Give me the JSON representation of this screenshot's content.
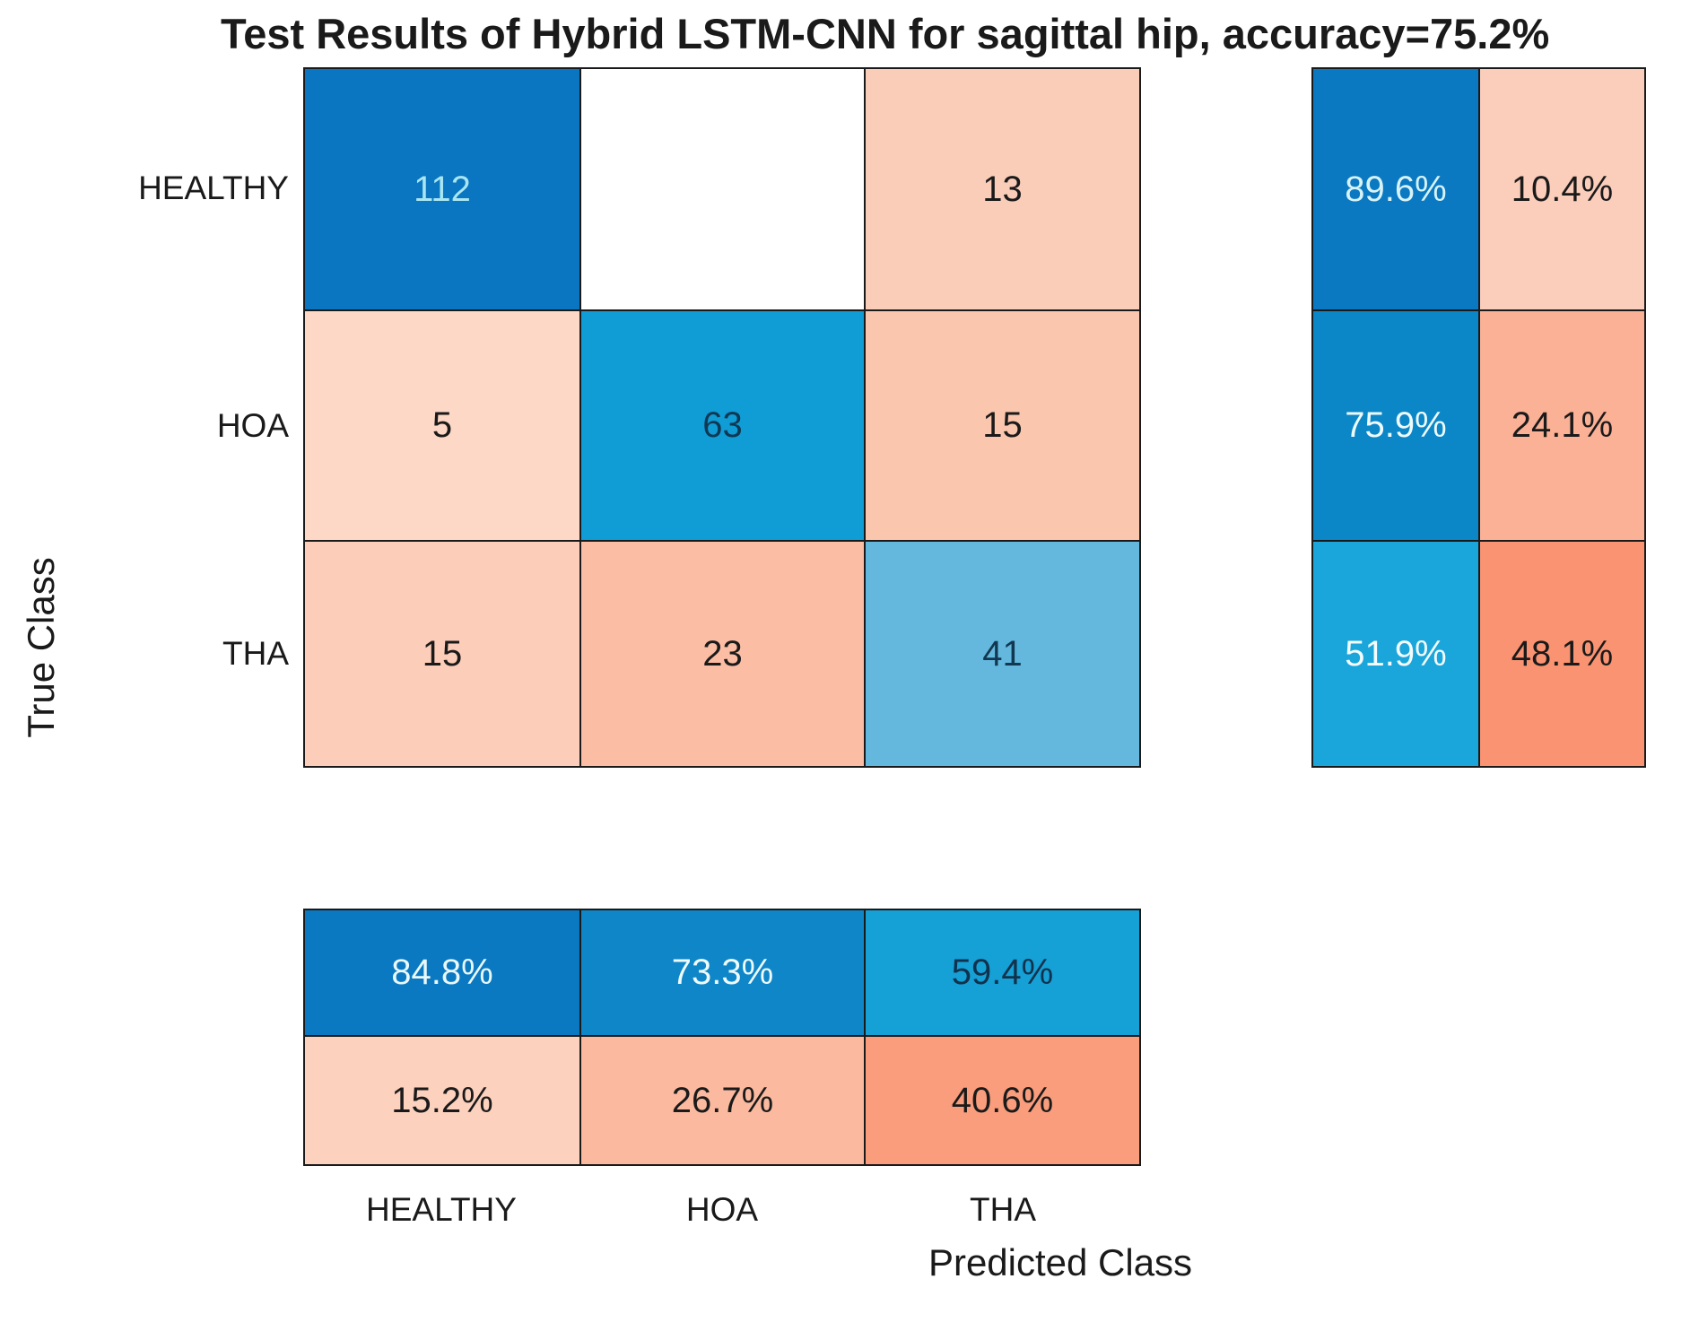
{
  "title": {
    "text": "Test Results of Hybrid LSTM-CNN for sagittal hip, accuracy=75.2",
    "clipped_suffix": "%"
  },
  "axes": {
    "x_label": "Predicted Class",
    "y_label": "True Class",
    "x_ticks": [
      "HEALTHY",
      "HOA",
      "THA"
    ],
    "y_ticks": [
      "HEALTHY",
      "HOA",
      "THA"
    ]
  },
  "colors": {
    "grid_line": "#1a1a1a",
    "background": "#ffffff",
    "diagonal_blue_max": "#0a75c0",
    "off_diagonal_salmon_max": "#f99372"
  },
  "matrix_cells": [
    {
      "v": "112",
      "bg": "#0a75c0",
      "fg": "#a9e6f1"
    },
    {
      "v": "",
      "bg": "#ffffff",
      "fg": "#1a1a1a"
    },
    {
      "v": "13",
      "bg": "#facdb9",
      "fg": "#1a1a1a"
    },
    {
      "v": "5",
      "bg": "#fdd8c6",
      "fg": "#1a1a1a"
    },
    {
      "v": "63",
      "bg": "#109cd4",
      "fg": "#0f3854"
    },
    {
      "v": "15",
      "bg": "#fbc6ae",
      "fg": "#1a1a1a"
    },
    {
      "v": "15",
      "bg": "#fccdb8",
      "fg": "#1a1a1a"
    },
    {
      "v": "23",
      "bg": "#fbbda4",
      "fg": "#1a1a1a"
    },
    {
      "v": "41",
      "bg": "#64b8dd",
      "fg": "#123751"
    }
  ],
  "row_summary_cells": [
    {
      "v": "89.6%",
      "bg": "#0a79c2",
      "fg": "#d8f3f6"
    },
    {
      "v": "10.4%",
      "bg": "#fbcdbb",
      "fg": "#1a1a1a"
    },
    {
      "v": "75.9%",
      "bg": "#0b86c7",
      "fg": "#eefafb"
    },
    {
      "v": "24.1%",
      "bg": "#fab195",
      "fg": "#1a1a1a"
    },
    {
      "v": "51.9%",
      "bg": "#1ba6db",
      "fg": "#f3fbfd"
    },
    {
      "v": "48.1%",
      "bg": "#f99372",
      "fg": "#1a1a1a"
    }
  ],
  "col_summary_cells": [
    {
      "v": "84.8%",
      "bg": "#0b79c1",
      "fg": "#e9f8fa"
    },
    {
      "v": "73.3%",
      "bg": "#0e86c8",
      "fg": "#eefafb"
    },
    {
      "v": "59.4%",
      "bg": "#15a0d6",
      "fg": "#11324c"
    },
    {
      "v": "15.2%",
      "bg": "#fcd1be",
      "fg": "#1a1a1a"
    },
    {
      "v": "26.7%",
      "bg": "#fbbaa0",
      "fg": "#1a1a1a"
    },
    {
      "v": "40.6%",
      "bg": "#f99d7c",
      "fg": "#1a1a1a"
    }
  ],
  "chart_data": {
    "type": "heatmap",
    "subtype": "confusion-matrix",
    "title": "Test Results of Hybrid LSTM-CNN for sagittal hip, accuracy=75.2%",
    "xlabel": "Predicted Class",
    "ylabel": "True Class",
    "classes": [
      "HEALTHY",
      "HOA",
      "THA"
    ],
    "confusion_counts_rows_true_cols_predicted": [
      [
        112,
        0,
        13
      ],
      [
        5,
        63,
        15
      ],
      [
        15,
        23,
        41
      ]
    ],
    "row_summary_true_positive_rate_pct": [
      89.6,
      75.9,
      51.9
    ],
    "row_summary_false_negative_rate_pct": [
      10.4,
      24.1,
      48.1
    ],
    "col_summary_positive_predictive_value_pct": [
      84.8,
      73.3,
      59.4
    ],
    "col_summary_false_discovery_rate_pct": [
      15.2,
      26.7,
      40.6
    ],
    "accuracy_pct": 75.2,
    "legend_position": "none",
    "grid": true,
    "colormap": "blue diagonal / salmon off-diagonal, intensity proportional to value"
  }
}
